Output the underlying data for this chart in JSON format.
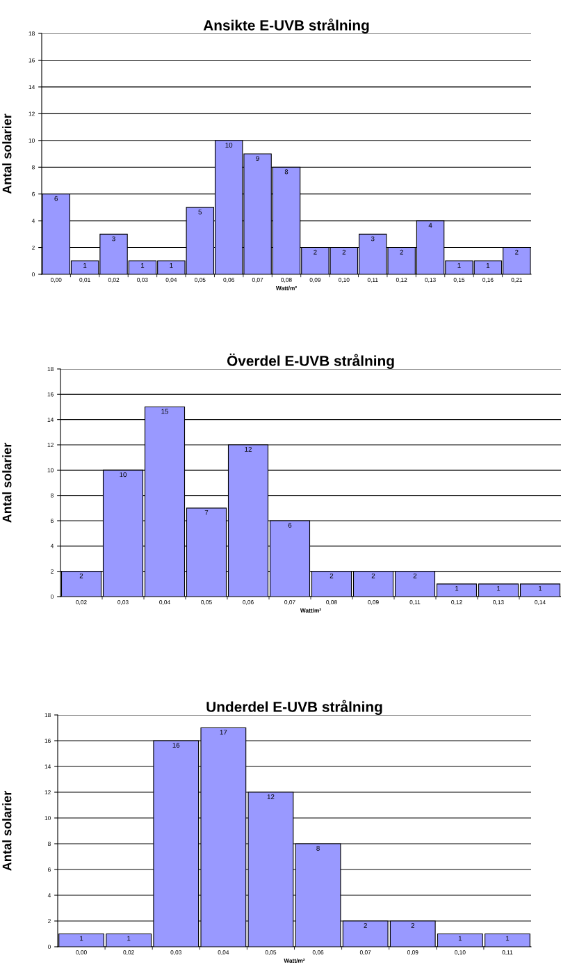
{
  "chart_data": [
    {
      "type": "bar",
      "title": "Ansikte E-UVB strålning",
      "xlabel": "Watt/m²",
      "ylabel": "Antal solarier",
      "categories": [
        "0,00",
        "0,01",
        "0,02",
        "0,03",
        "0,04",
        "0,05",
        "0,06",
        "0,07",
        "0,08",
        "0,09",
        "0,10",
        "0,11",
        "0,12",
        "0,13",
        "0,15",
        "0,16",
        "0,21"
      ],
      "values": [
        6,
        1,
        3,
        1,
        1,
        5,
        10,
        9,
        8,
        2,
        2,
        3,
        2,
        4,
        1,
        1,
        2
      ],
      "color": "#9999ff",
      "ylim": [
        0,
        18
      ],
      "yticks": [
        0,
        2,
        4,
        6,
        8,
        10,
        12,
        14,
        16,
        18
      ],
      "grid": "y",
      "data_labels": true
    },
    {
      "type": "bar",
      "title": "Överdel E-UVB strålning",
      "xlabel": "Watt/m²",
      "ylabel": "Antal solarier",
      "categories": [
        "0,02",
        "0,03",
        "0,04",
        "0,05",
        "0,06",
        "0,07",
        "0,08",
        "0,09",
        "0,11",
        "0,12",
        "0,13",
        "0,14"
      ],
      "values": [
        2,
        10,
        15,
        7,
        12,
        6,
        2,
        2,
        2,
        1,
        1,
        1
      ],
      "color": "#9999ff",
      "ylim": [
        0,
        18
      ],
      "yticks": [
        0,
        2,
        4,
        6,
        8,
        10,
        12,
        14,
        16,
        18
      ],
      "grid": "y",
      "data_labels": true
    },
    {
      "type": "bar",
      "title": "Underdel E-UVB strålning",
      "xlabel": "Watt/m²",
      "ylabel": "Antal solarier",
      "categories": [
        "0,00",
        "0,02",
        "0,03",
        "0,04",
        "0,05",
        "0,06",
        "0,07",
        "0,09",
        "0,10",
        "0,11"
      ],
      "values": [
        1,
        1,
        16,
        17,
        12,
        8,
        2,
        2,
        1,
        1
      ],
      "color": "#9999ff",
      "ylim": [
        0,
        18
      ],
      "yticks": [
        0,
        2,
        4,
        6,
        8,
        10,
        12,
        14,
        16,
        18
      ],
      "grid": "y",
      "data_labels": true
    }
  ]
}
